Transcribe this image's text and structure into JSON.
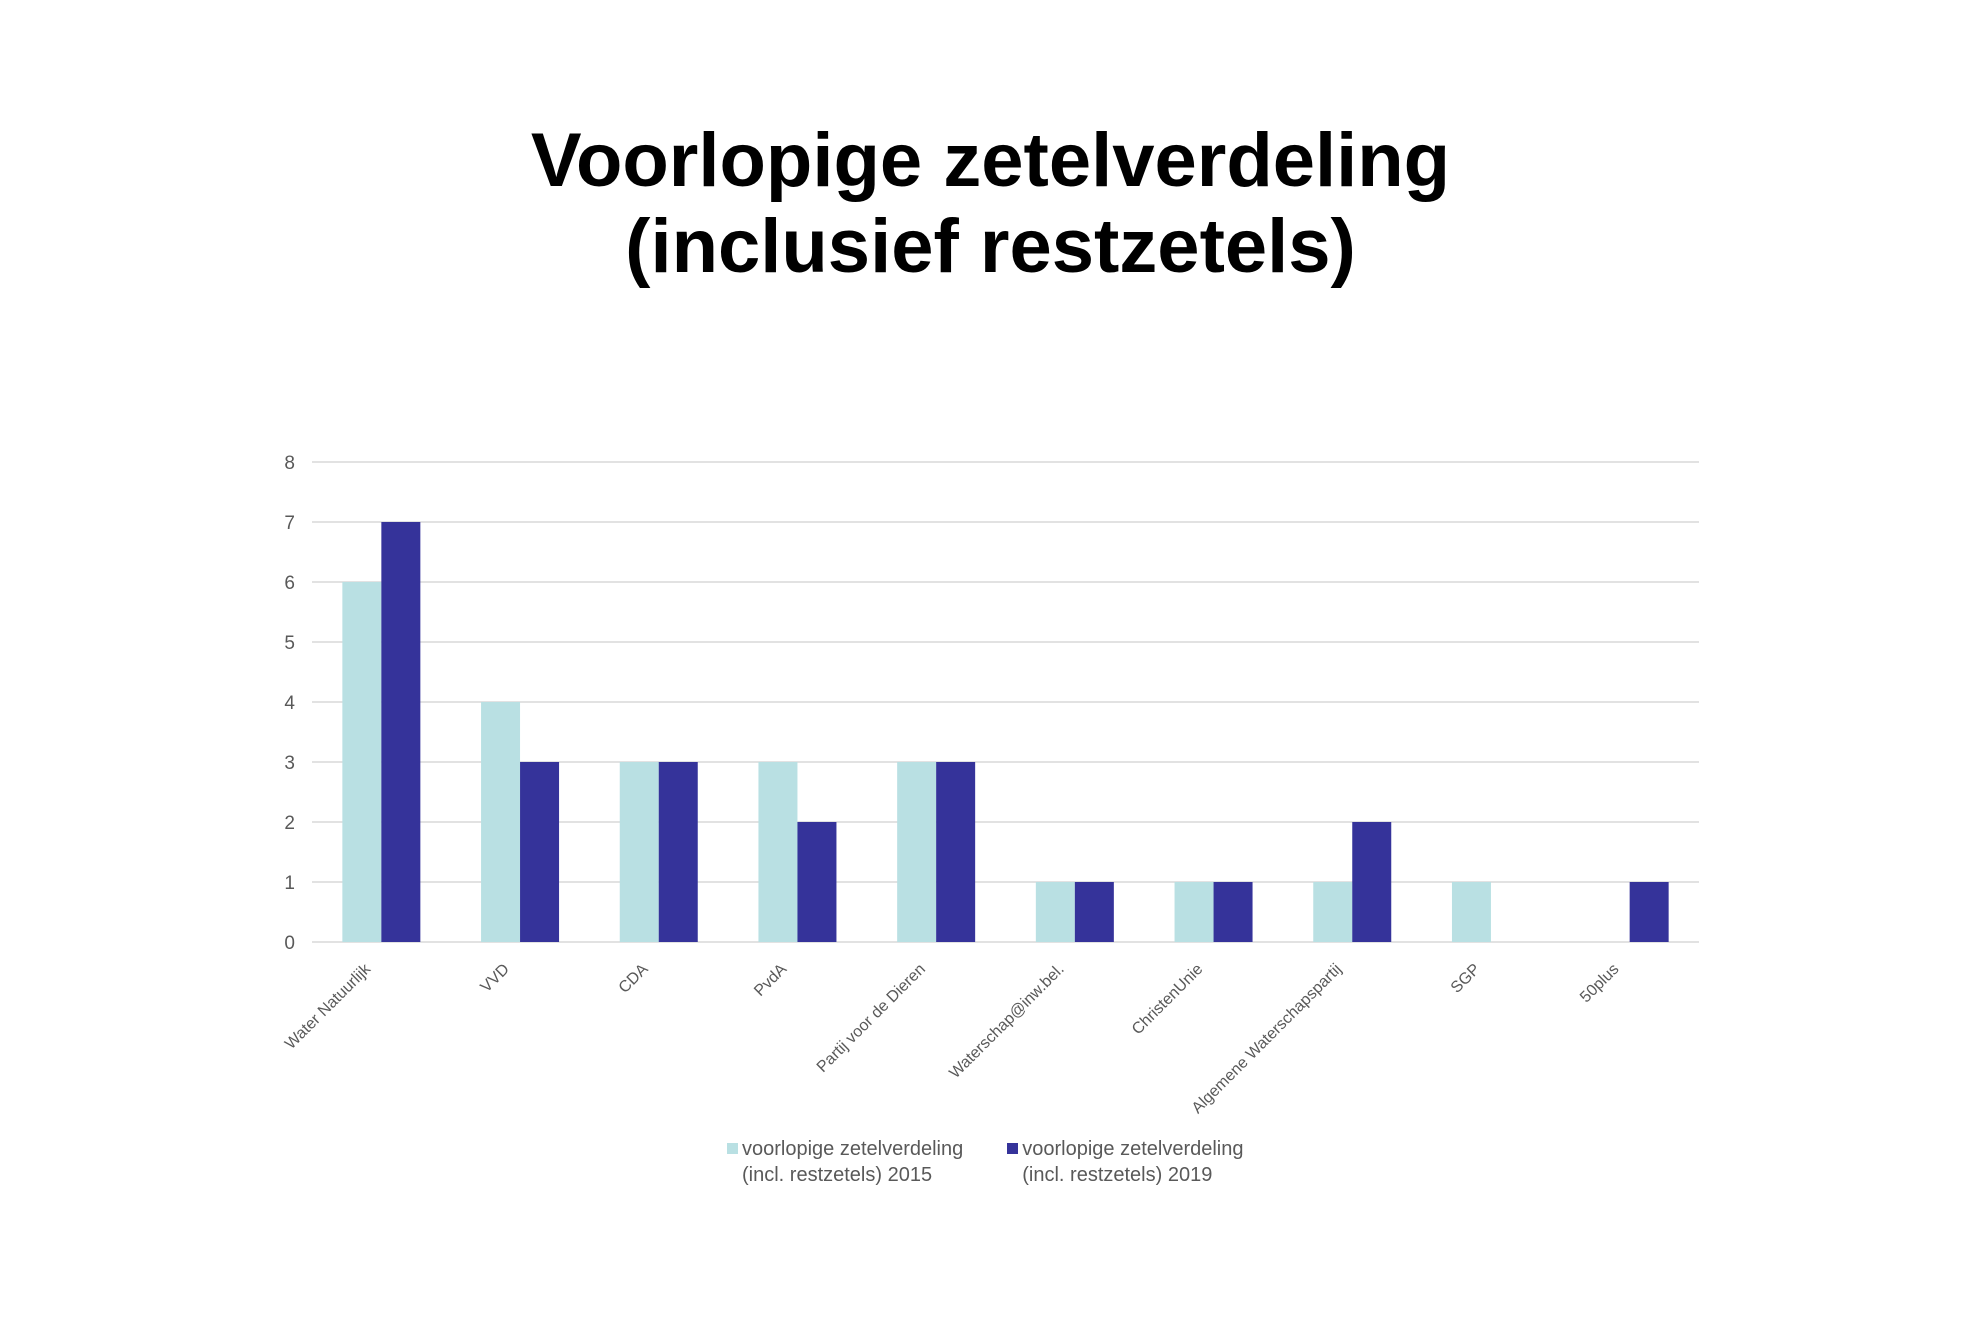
{
  "chart_data": {
    "type": "bar",
    "title_lines": [
      "Voorlopige zetelverdeling",
      "(inclusief restzetels)"
    ],
    "categories": [
      "Water Natuurlijk",
      "VVD",
      "CDA",
      "PvdA",
      "Partij voor de Dieren",
      "Waterschap@inw.bel.",
      "ChristenUnie",
      "Algemene Waterschapspartij",
      "SGP",
      "50plus"
    ],
    "series": [
      {
        "name": "voorlopige zetelverdeling\n(incl. restzetels) 2015",
        "color": "#b9e0e3",
        "values": [
          6,
          4,
          3,
          3,
          3,
          1,
          1,
          1,
          1,
          0
        ]
      },
      {
        "name": "voorlopige zetelverdeling\n(incl. restzetels) 2019",
        "color": "#35339a",
        "values": [
          7,
          3,
          3,
          2,
          3,
          1,
          1,
          2,
          0,
          1
        ]
      }
    ],
    "xlabel": "",
    "ylabel": "",
    "ylim": [
      0,
      8
    ],
    "yticks": [
      0,
      1,
      2,
      3,
      4,
      5,
      6,
      7,
      8
    ],
    "grid": true,
    "legend_position": "bottom",
    "colors": {
      "grid": "#d9d9d9",
      "axis_text": "#595959"
    }
  }
}
